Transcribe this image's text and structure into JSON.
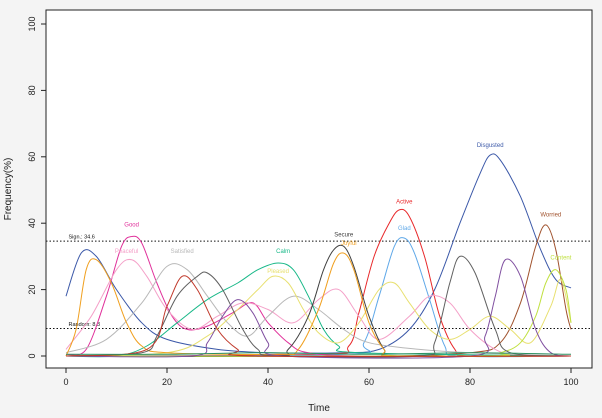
{
  "chart_data": {
    "type": "line",
    "xlabel": "Time",
    "ylabel": "Frequency(%)",
    "xlim": [
      0,
      100
    ],
    "ylim": [
      0,
      100
    ],
    "x_ticks": [
      "0",
      "20",
      "40",
      "60",
      "80",
      "100"
    ],
    "y_ticks": [
      "0",
      "20",
      "40",
      "60",
      "80",
      "100"
    ],
    "grid": false,
    "reference_lines": [
      {
        "label": "Sign.: 34.6",
        "value": 34.6
      },
      {
        "label": "Random: 8.3",
        "value": 8.3
      }
    ],
    "series": [
      {
        "name": "Disgusted",
        "color": "#3b58a8",
        "points": [
          [
            0,
            18
          ],
          [
            3,
            31
          ],
          [
            6,
            30
          ],
          [
            10,
            20
          ],
          [
            15,
            10
          ],
          [
            20,
            5
          ],
          [
            30,
            2
          ],
          [
            40,
            1
          ],
          [
            55,
            1
          ],
          [
            62,
            2
          ],
          [
            68,
            8
          ],
          [
            73,
            20
          ],
          [
            78,
            40
          ],
          [
            82,
            55
          ],
          [
            84,
            60.5
          ],
          [
            86,
            59
          ],
          [
            90,
            48
          ],
          [
            94,
            32
          ],
          [
            97,
            23
          ],
          [
            100,
            20.5
          ]
        ]
      },
      {
        "name": "Worried",
        "color": "#a0522d",
        "points": [
          [
            0,
            0
          ],
          [
            60,
            0
          ],
          [
            80,
            1
          ],
          [
            86,
            4
          ],
          [
            90,
            16
          ],
          [
            93,
            33
          ],
          [
            95,
            39.5
          ],
          [
            97,
            32
          ],
          [
            99,
            14
          ],
          [
            100,
            8
          ]
        ]
      },
      {
        "name": "Active",
        "color": "#e8282a",
        "points": [
          [
            0,
            0
          ],
          [
            50,
            0.5
          ],
          [
            56,
            3
          ],
          [
            58,
            13
          ],
          [
            61,
            30
          ],
          [
            64,
            40
          ],
          [
            66,
            44
          ],
          [
            68,
            42
          ],
          [
            71,
            30
          ],
          [
            74,
            12
          ],
          [
            77,
            2
          ],
          [
            80,
            0
          ],
          [
            100,
            0
          ]
        ]
      },
      {
        "name": "Glad",
        "color": "#5fa8e8",
        "points": [
          [
            0,
            0
          ],
          [
            55,
            0.5
          ],
          [
            59,
            4
          ],
          [
            62,
            18
          ],
          [
            65,
            33
          ],
          [
            67,
            35.5
          ],
          [
            69,
            31
          ],
          [
            72,
            17
          ],
          [
            75,
            3
          ],
          [
            78,
            0
          ],
          [
            100,
            0
          ]
        ]
      },
      {
        "name": "Good",
        "color": "#e0309a",
        "points": [
          [
            0,
            0.5
          ],
          [
            4,
            2
          ],
          [
            8,
            18
          ],
          [
            11,
            33
          ],
          [
            13,
            36
          ],
          [
            15,
            34
          ],
          [
            18,
            22
          ],
          [
            21,
            12
          ],
          [
            24,
            8
          ],
          [
            28,
            9
          ],
          [
            33,
            13
          ],
          [
            37,
            16
          ],
          [
            40,
            10
          ],
          [
            44,
            4
          ],
          [
            48,
            1
          ],
          [
            60,
            0
          ],
          [
            100,
            0
          ]
        ]
      },
      {
        "name": "Peaceful",
        "color": "#f4a0c8",
        "points": [
          [
            0,
            2
          ],
          [
            5,
            12
          ],
          [
            10,
            26
          ],
          [
            13,
            29
          ],
          [
            16,
            24
          ],
          [
            20,
            14
          ],
          [
            25,
            8
          ],
          [
            30,
            12
          ],
          [
            35,
            16
          ],
          [
            40,
            14
          ],
          [
            45,
            10
          ],
          [
            50,
            17
          ],
          [
            54,
            20
          ],
          [
            58,
            12
          ],
          [
            62,
            5
          ],
          [
            68,
            12
          ],
          [
            72,
            18
          ],
          [
            76,
            16
          ],
          [
            80,
            8
          ],
          [
            85,
            2
          ],
          [
            90,
            0
          ],
          [
            100,
            0
          ]
        ]
      },
      {
        "name": "Satisfied",
        "color": "#b8b8b8",
        "points": [
          [
            0,
            1
          ],
          [
            8,
            5
          ],
          [
            15,
            16
          ],
          [
            20,
            27
          ],
          [
            24,
            26
          ],
          [
            28,
            18
          ],
          [
            32,
            10
          ],
          [
            36,
            6
          ],
          [
            40,
            12
          ],
          [
            45,
            18
          ],
          [
            50,
            14
          ],
          [
            55,
            8
          ],
          [
            60,
            4
          ],
          [
            70,
            2
          ],
          [
            80,
            1
          ],
          [
            100,
            0
          ]
        ]
      },
      {
        "name": "Calm",
        "color": "#18b888",
        "points": [
          [
            0,
            0
          ],
          [
            10,
            0
          ],
          [
            16,
            3
          ],
          [
            22,
            10
          ],
          [
            28,
            17
          ],
          [
            34,
            22
          ],
          [
            38,
            26
          ],
          [
            42,
            28
          ],
          [
            45,
            26
          ],
          [
            48,
            18
          ],
          [
            51,
            8
          ],
          [
            54,
            3
          ],
          [
            58,
            1
          ],
          [
            100,
            0
          ]
        ]
      },
      {
        "name": "Pleased",
        "color": "#e8e070",
        "points": [
          [
            0,
            0
          ],
          [
            20,
            1
          ],
          [
            28,
            6
          ],
          [
            34,
            14
          ],
          [
            38,
            20
          ],
          [
            41,
            24
          ],
          [
            44,
            22
          ],
          [
            47,
            14
          ],
          [
            50,
            7
          ],
          [
            54,
            4
          ],
          [
            58,
            10
          ],
          [
            62,
            20
          ],
          [
            65,
            22
          ],
          [
            68,
            16
          ],
          [
            72,
            8
          ],
          [
            76,
            5
          ],
          [
            80,
            8
          ],
          [
            84,
            12
          ],
          [
            88,
            8
          ],
          [
            92,
            4
          ],
          [
            96,
            15
          ],
          [
            98,
            23
          ],
          [
            100,
            10
          ]
        ]
      },
      {
        "name": "Secure",
        "color": "#404040",
        "points": [
          [
            0,
            0
          ],
          [
            40,
            0
          ],
          [
            44,
            2
          ],
          [
            48,
            12
          ],
          [
            51,
            26
          ],
          [
            53,
            32
          ],
          [
            55,
            33
          ],
          [
            57,
            27
          ],
          [
            60,
            12
          ],
          [
            63,
            2
          ],
          [
            66,
            0
          ],
          [
            100,
            0
          ]
        ]
      },
      {
        "name": "Joyful",
        "color": "#f0a020",
        "points": [
          [
            0,
            0
          ],
          [
            2,
            8
          ],
          [
            4,
            26
          ],
          [
            6,
            29
          ],
          [
            9,
            22
          ],
          [
            12,
            10
          ],
          [
            15,
            3
          ],
          [
            20,
            1
          ],
          [
            42,
            0.5
          ],
          [
            46,
            2
          ],
          [
            50,
            14
          ],
          [
            53,
            28
          ],
          [
            55,
            31
          ],
          [
            57,
            26
          ],
          [
            60,
            10
          ],
          [
            63,
            2
          ],
          [
            66,
            0
          ],
          [
            100,
            0
          ]
        ]
      },
      {
        "name": "Content",
        "color": "#c0e040",
        "points": [
          [
            0,
            0
          ],
          [
            80,
            0
          ],
          [
            86,
            1
          ],
          [
            90,
            4
          ],
          [
            93,
            12
          ],
          [
            95,
            22
          ],
          [
            97,
            26
          ],
          [
            99,
            20
          ],
          [
            100,
            10
          ]
        ]
      },
      {
        "name": "",
        "color": "#606060",
        "points": [
          [
            0,
            0
          ],
          [
            15,
            1
          ],
          [
            18,
            6
          ],
          [
            22,
            18
          ],
          [
            26,
            24
          ],
          [
            28,
            25
          ],
          [
            31,
            20
          ],
          [
            35,
            8
          ],
          [
            38,
            2
          ],
          [
            42,
            0
          ],
          [
            70,
            0
          ],
          [
            73,
            4
          ],
          [
            76,
            22
          ],
          [
            78,
            30
          ],
          [
            81,
            25
          ],
          [
            85,
            8
          ],
          [
            88,
            1
          ],
          [
            100,
            0
          ]
        ]
      },
      {
        "name": "",
        "color": "#8050a0",
        "points": [
          [
            0,
            0
          ],
          [
            25,
            0
          ],
          [
            28,
            4
          ],
          [
            31,
            12
          ],
          [
            34,
            17
          ],
          [
            37,
            13
          ],
          [
            40,
            4
          ],
          [
            43,
            0
          ],
          [
            80,
            0
          ],
          [
            83,
            6
          ],
          [
            85,
            18
          ],
          [
            87,
            29
          ],
          [
            90,
            24
          ],
          [
            93,
            8
          ],
          [
            96,
            1
          ],
          [
            100,
            0
          ]
        ]
      },
      {
        "name": "",
        "color": "#c0392b",
        "points": [
          [
            0,
            0
          ],
          [
            16,
            2
          ],
          [
            20,
            15
          ],
          [
            23,
            24
          ],
          [
            26,
            20
          ],
          [
            30,
            8
          ],
          [
            34,
            2
          ],
          [
            38,
            0
          ],
          [
            100,
            0
          ]
        ]
      },
      {
        "name": "",
        "color": "#2a9060",
        "points": [
          [
            0,
            0.5
          ],
          [
            20,
            0.5
          ],
          [
            40,
            1
          ],
          [
            60,
            0.5
          ],
          [
            80,
            1
          ],
          [
            100,
            0.5
          ]
        ]
      }
    ],
    "annotations": [
      {
        "text": "Good",
        "x": 13,
        "y": 39,
        "color": "#e0309a"
      },
      {
        "text": "Peaceful",
        "x": 12,
        "y": 31,
        "color": "#f4a0c8"
      },
      {
        "text": "Satisfied",
        "x": 23,
        "y": 31,
        "color": "#b8b8b8"
      },
      {
        "text": "Calm",
        "x": 43,
        "y": 31,
        "color": "#18b888"
      },
      {
        "text": "Pleased",
        "x": 42,
        "y": 25,
        "color": "#e8e070"
      },
      {
        "text": "Secure",
        "x": 55,
        "y": 36,
        "color": "#404040"
      },
      {
        "text": "Joyful",
        "x": 56,
        "y": 33.5,
        "color": "#f0a020"
      },
      {
        "text": "Active",
        "x": 67,
        "y": 46,
        "color": "#e8282a"
      },
      {
        "text": "Glad",
        "x": 67,
        "y": 38,
        "color": "#5fa8e8"
      },
      {
        "text": "Disgusted",
        "x": 84,
        "y": 63,
        "color": "#3b58a8"
      },
      {
        "text": "Worried",
        "x": 96,
        "y": 42,
        "color": "#a0522d"
      },
      {
        "text": "Content",
        "x": 98,
        "y": 29,
        "color": "#c0e040"
      }
    ]
  }
}
